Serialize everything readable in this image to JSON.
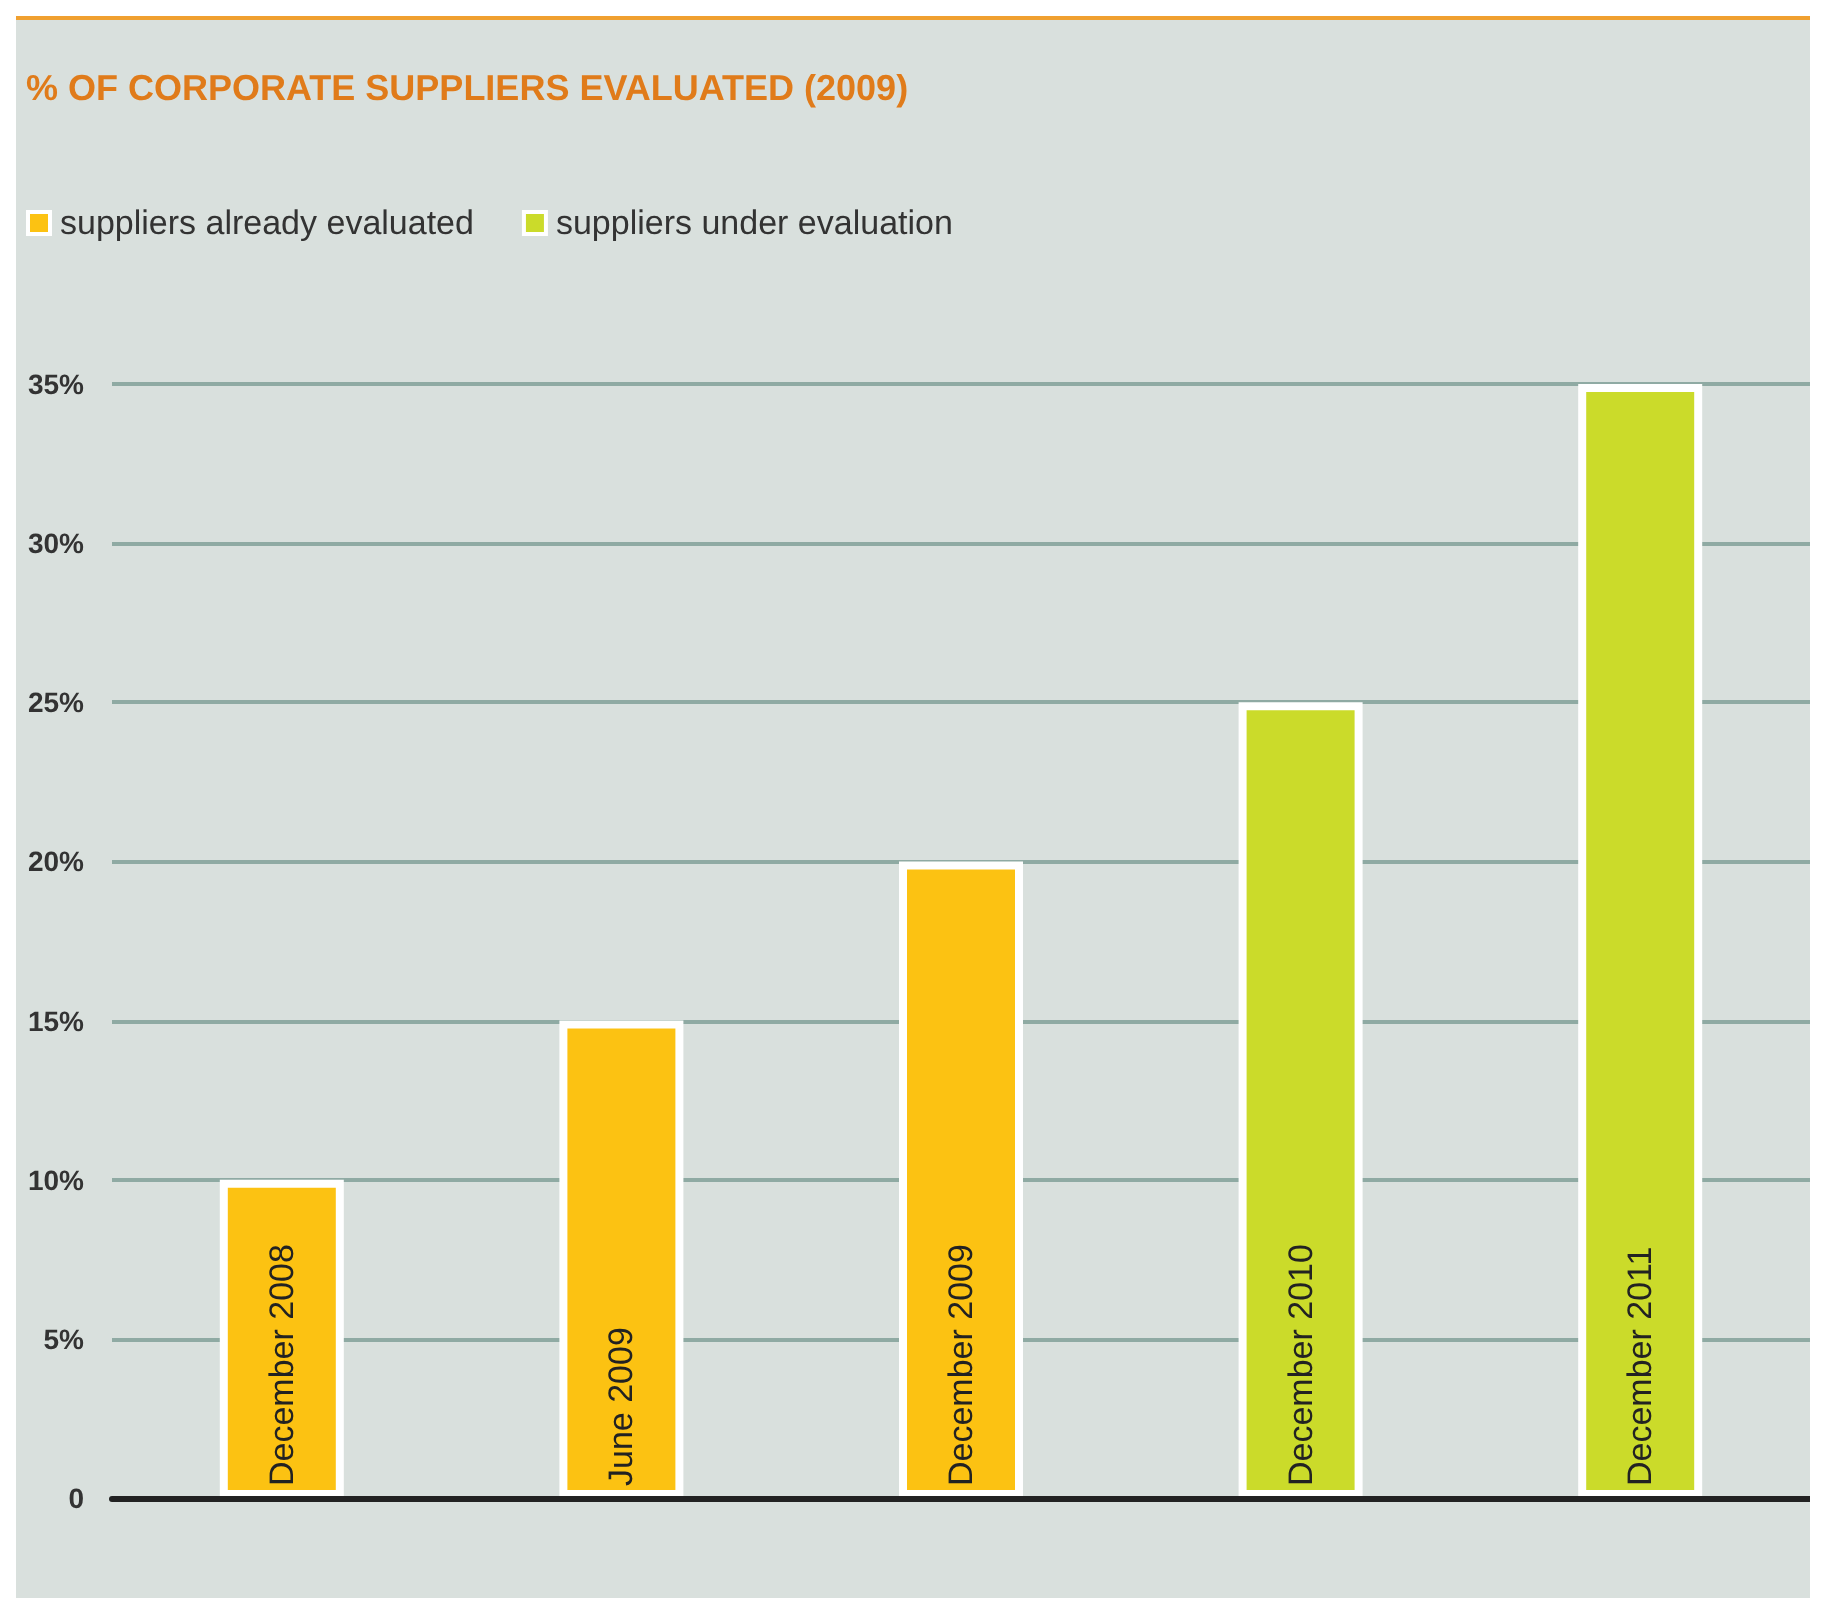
{
  "chart_data": {
    "type": "bar",
    "title": "% OF CORPORATE SUPPLIERS EVALUATED (2009)",
    "categories": [
      "December 2008",
      "June 2009",
      "December 2009",
      "December 2010",
      "December 2011"
    ],
    "series": [
      {
        "name": "suppliers already evaluated",
        "color": "#fcc212",
        "values": [
          10,
          15,
          20,
          null,
          null
        ]
      },
      {
        "name": "suppliers under evaluation",
        "color": "#cbdb2a",
        "values": [
          null,
          null,
          null,
          25,
          35
        ]
      }
    ],
    "ylim": [
      0,
      35
    ],
    "yticks": [
      {
        "value": 0,
        "label": "0"
      },
      {
        "value": 5,
        "label": "5%"
      },
      {
        "value": 10,
        "label": "10%"
      },
      {
        "value": 15,
        "label": "15%"
      },
      {
        "value": 20,
        "label": "20%"
      },
      {
        "value": 25,
        "label": "25%"
      },
      {
        "value": 30,
        "label": "30%"
      },
      {
        "value": 35,
        "label": "35%"
      }
    ],
    "grid": "y",
    "legend": "top left"
  }
}
